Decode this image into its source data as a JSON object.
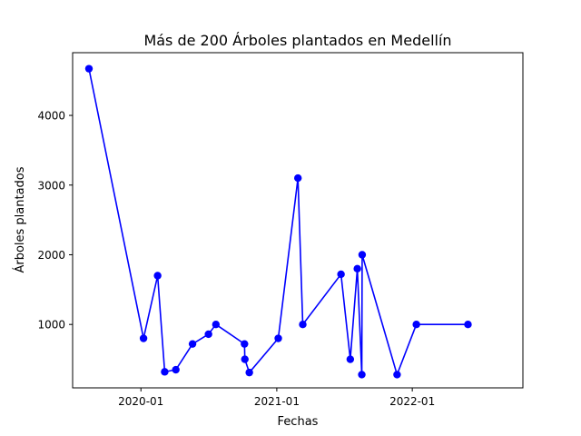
{
  "chart_data": {
    "type": "line",
    "title": "Más de 200 Árboles plantados en Medellín",
    "xlabel": "Fechas",
    "ylabel": "Árboles plantados",
    "x_ticks": [
      {
        "date": "2020-01-01",
        "label": "2020-01"
      },
      {
        "date": "2021-01-01",
        "label": "2021-01"
      },
      {
        "date": "2022-01-01",
        "label": "2022-01"
      }
    ],
    "y_ticks": [
      1000,
      2000,
      3000,
      4000
    ],
    "xlim": [
      "2019-07-01",
      "2022-10-26"
    ],
    "ylim": [
      90,
      4900
    ],
    "grid": false,
    "color": "#0000ff",
    "series": [
      {
        "points": [
          {
            "x": "2019-08-14",
            "y": 4670
          },
          {
            "x": "2020-01-08",
            "y": 800
          },
          {
            "x": "2020-02-15",
            "y": 1700
          },
          {
            "x": "2020-03-05",
            "y": 320
          },
          {
            "x": "2020-04-04",
            "y": 350
          },
          {
            "x": "2020-05-19",
            "y": 720
          },
          {
            "x": "2020-07-01",
            "y": 860
          },
          {
            "x": "2020-07-21",
            "y": 1000
          },
          {
            "x": "2020-10-06",
            "y": 720
          },
          {
            "x": "2020-10-07",
            "y": 500
          },
          {
            "x": "2020-10-19",
            "y": 310
          },
          {
            "x": "2021-01-05",
            "y": 800
          },
          {
            "x": "2021-02-27",
            "y": 3100
          },
          {
            "x": "2021-03-12",
            "y": 1000
          },
          {
            "x": "2021-06-23",
            "y": 1720
          },
          {
            "x": "2021-07-18",
            "y": 500
          },
          {
            "x": "2021-08-06",
            "y": 1800
          },
          {
            "x": "2021-08-18",
            "y": 280
          },
          {
            "x": "2021-08-19",
            "y": 2000
          },
          {
            "x": "2021-11-21",
            "y": 280
          },
          {
            "x": "2022-01-12",
            "y": 1000
          },
          {
            "x": "2022-05-31",
            "y": 1000
          }
        ]
      }
    ]
  }
}
